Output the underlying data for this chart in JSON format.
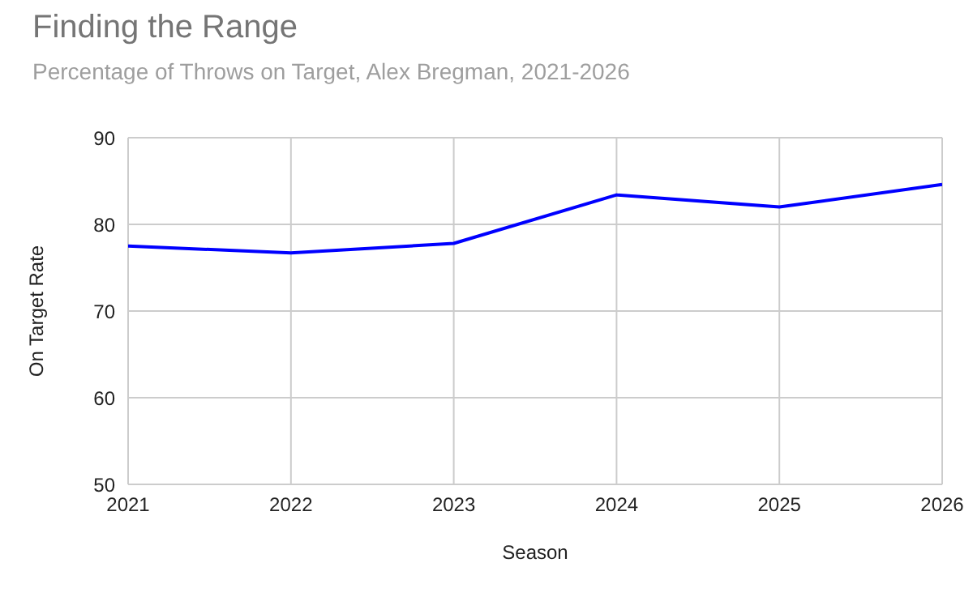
{
  "chart_data": {
    "type": "line",
    "title": "Finding the Range",
    "subtitle": "Percentage of Throws on Target, Alex Bregman, 2021-2026",
    "xlabel": "Season",
    "ylabel": "On Target Rate",
    "x": [
      2021,
      2022,
      2023,
      2024,
      2025,
      2026
    ],
    "series": [
      {
        "color": "#0000ff",
        "values": [
          77.5,
          76.7,
          77.8,
          83.4,
          82.0,
          84.6
        ]
      }
    ],
    "xlim": [
      2021,
      2026
    ],
    "xticks": [
      2021,
      2022,
      2023,
      2024,
      2025,
      2026
    ],
    "ylim": [
      50,
      90
    ],
    "yticks": [
      50,
      60,
      70,
      80,
      90
    ],
    "grid": true,
    "legend": false,
    "marker": "none",
    "line_style": "solid"
  }
}
